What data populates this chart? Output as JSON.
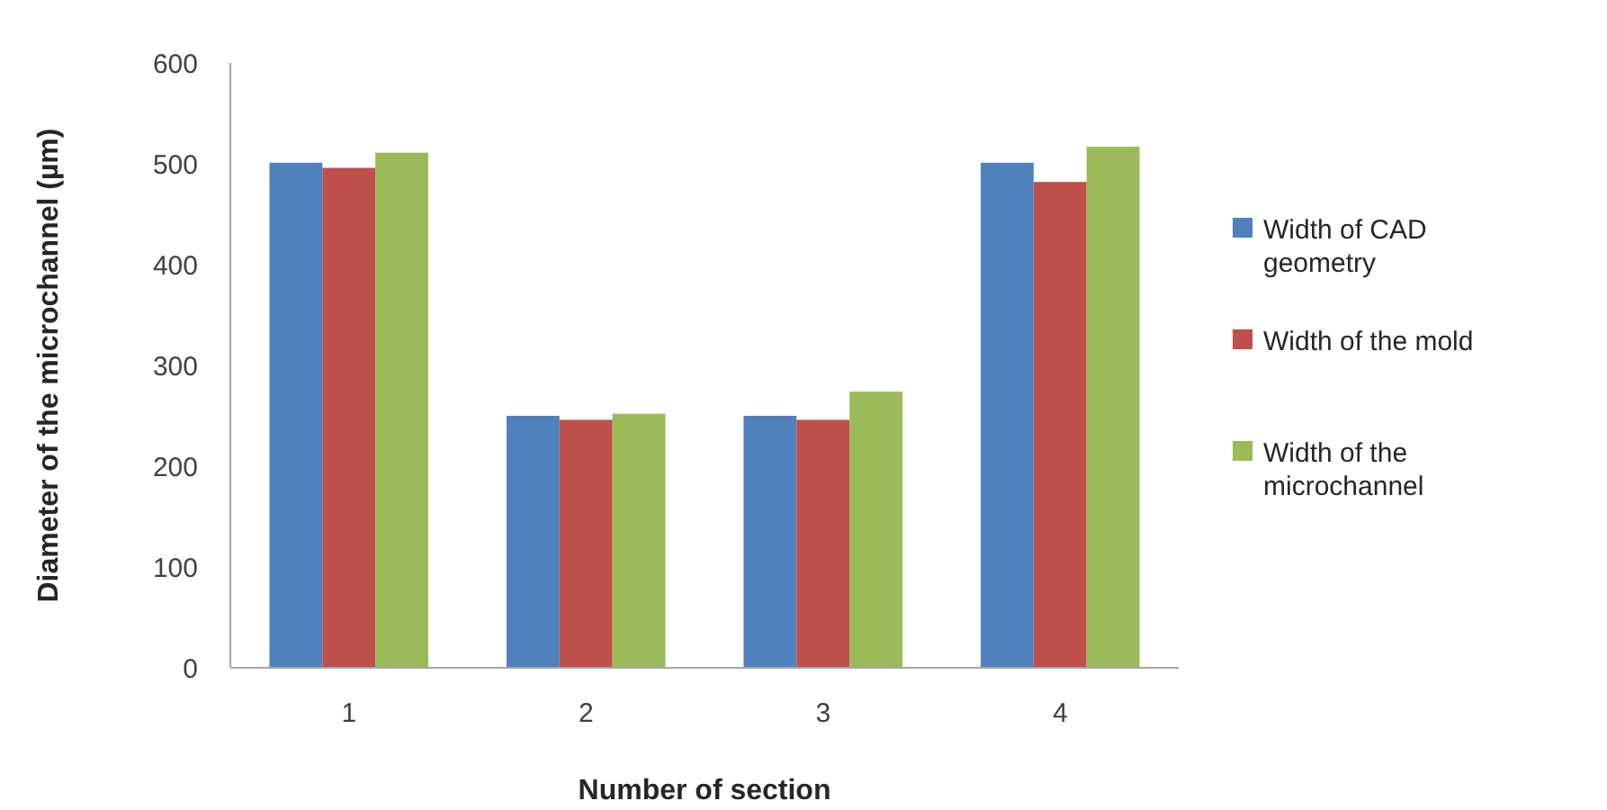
{
  "chart_data": {
    "type": "bar",
    "xlabel": "Number of section",
    "ylabel": "Diameter of the microchannel (µm)",
    "categories": [
      "1",
      "2",
      "3",
      "4"
    ],
    "series": [
      {
        "name": "Width of CAD geometry",
        "color": "#4f81bd",
        "values": [
          501,
          250,
          250,
          501
        ]
      },
      {
        "name": "Width of the mold",
        "color": "#c0504d",
        "values": [
          496,
          246,
          246,
          482
        ]
      },
      {
        "name": "Width of the microchannel",
        "color": "#9bbb59",
        "values": [
          511,
          252,
          274,
          517
        ]
      }
    ],
    "ylim": [
      0,
      600
    ],
    "yticks": [
      0,
      100,
      200,
      300,
      400,
      500,
      600
    ],
    "grid": false,
    "legend": "right"
  }
}
